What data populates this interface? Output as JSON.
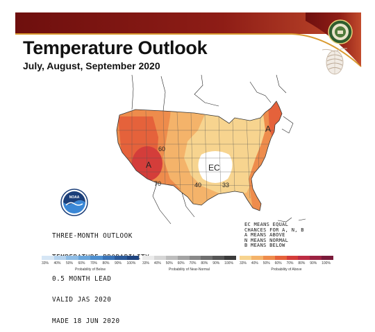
{
  "header": {
    "title": "Temperature Outlook",
    "subtitle": "July, August, September 2020"
  },
  "map": {
    "labels": {
      "above_west": "A",
      "above_northeast": "A",
      "equal_chances": "EC",
      "contour_60": "60",
      "contour_70": "70",
      "contour_40": "40",
      "contour_33": "33"
    }
  },
  "outlook_info": {
    "lines": [
      "THREE-MONTH OUTLOOK",
      "TEMPERATURE PROBABILITY",
      "0.5 MONTH LEAD",
      "VALID JAS 2020",
      "MADE 18 JUN 2020"
    ]
  },
  "key": {
    "lines": [
      "EC MEANS EQUAL",
      "CHANCES FOR A, N, B",
      "A MEANS ABOVE",
      "N MEANS NORMAL",
      "B MEANS BELOW"
    ]
  },
  "scales": {
    "below": {
      "caption": "Probability of Below",
      "ticks": [
        "33%",
        "40%",
        "50%",
        "60%",
        "70%",
        "80%",
        "90%",
        "100%"
      ],
      "colors": [
        "#d6e6f5",
        "#b5d3ee",
        "#8fbde6",
        "#6aa6dc",
        "#4e8fcf",
        "#3a74b8",
        "#2b5a9a",
        "#1f4580"
      ]
    },
    "normal": {
      "caption": "Probability of Near-Normal",
      "ticks": [
        "33%",
        "40%",
        "50%",
        "60%",
        "70%",
        "80%",
        "90%",
        "100%"
      ],
      "colors": [
        "#ebebeb",
        "#d6d6d6",
        "#bdbdbd",
        "#a3a3a3",
        "#898989",
        "#6f6f6f",
        "#555555",
        "#3b3b3b"
      ]
    },
    "above": {
      "caption": "Probability of Above",
      "ticks": [
        "33%",
        "40%",
        "50%",
        "60%",
        "70%",
        "80%",
        "90%",
        "100%"
      ],
      "colors": [
        "#f7d48f",
        "#f4b36a",
        "#ee8c4c",
        "#e5623b",
        "#d43d3a",
        "#bd2c43",
        "#9b2242",
        "#7a1a3a"
      ]
    }
  },
  "colors": {
    "banner_dark": "#7a1210",
    "banner_mid": "#b8442a",
    "gold_line": "#d99a2f",
    "above_33_40": "#f7d48f",
    "above_40_50": "#f4b36a",
    "above_50_60": "#ee8c4c",
    "above_60_70": "#e5623b",
    "above_70_80": "#d43d3a"
  }
}
